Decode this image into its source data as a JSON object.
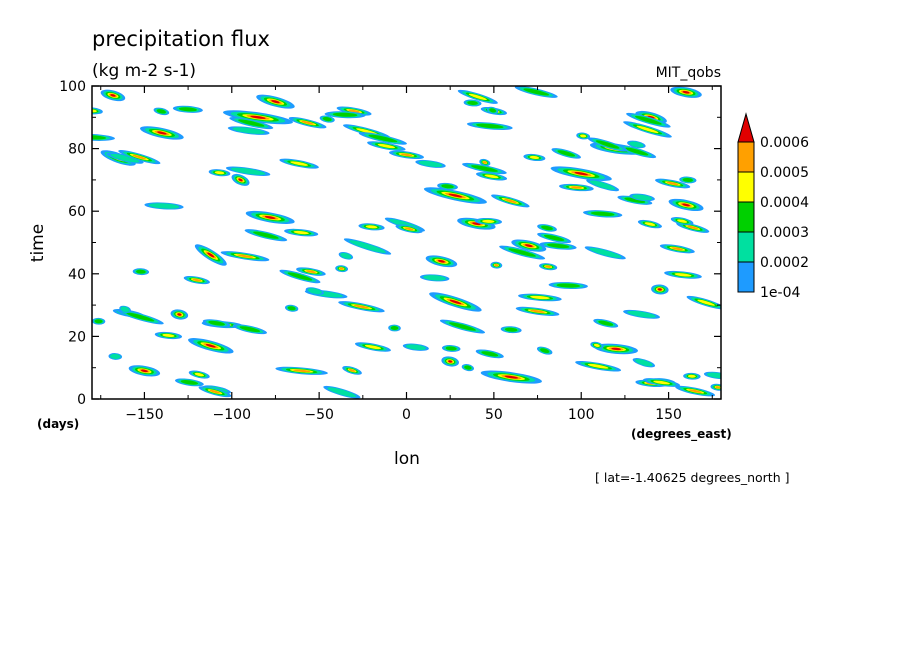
{
  "chart_data": {
    "type": "heatmap",
    "title": "precipitation flux",
    "subtitle": "(kg m-2 s-1)",
    "dataset": "MIT_qobs",
    "xlabel": "lon",
    "ylabel": "time",
    "x_units": "(degrees_east)",
    "y_units": "(days)",
    "xlim": [
      -180,
      180
    ],
    "ylim": [
      0,
      100
    ],
    "x_ticks": [
      -150,
      -100,
      -50,
      0,
      50,
      100,
      150
    ],
    "y_ticks": [
      0,
      20,
      40,
      60,
      80,
      100
    ],
    "footnote": "[ lat=-1.40625 degrees_north ]",
    "grid": false,
    "legend_position": "right",
    "colorbar": {
      "levels": [
        "1e-04",
        "0.0002",
        "0.0003",
        "0.0004",
        "0.0005",
        "0.0006"
      ],
      "colors": [
        "#1e9bff",
        "#00e0a0",
        "#00d000",
        "#ffff00",
        "#ffa000",
        "#e00000"
      ],
      "extend": "max"
    },
    "features": [
      {
        "lon": -112,
        "t": 46,
        "len": 18,
        "slope": -0.35,
        "peak": 7
      },
      {
        "lon": -95,
        "t": 70,
        "len": 10,
        "slope": -0.25,
        "peak": 6
      },
      {
        "lon": -78,
        "t": 58,
        "len": 28,
        "slope": -0.1,
        "peak": 6
      },
      {
        "lon": -75,
        "t": 95,
        "len": 22,
        "slope": -0.15,
        "peak": 6
      },
      {
        "lon": -165,
        "t": 77,
        "len": 20,
        "slope": -0.2,
        "peak": 6
      },
      {
        "lon": -140,
        "t": 85,
        "len": 25,
        "slope": -0.12,
        "peak": 6
      },
      {
        "lon": -168,
        "t": 97,
        "len": 14,
        "slope": -0.15,
        "peak": 6
      },
      {
        "lon": -112,
        "t": 17,
        "len": 26,
        "slope": -0.15,
        "peak": 6
      },
      {
        "lon": -130,
        "t": 27,
        "len": 10,
        "slope": -0.1,
        "peak": 6
      },
      {
        "lon": -150,
        "t": 9,
        "len": 18,
        "slope": -0.1,
        "peak": 5
      },
      {
        "lon": -85,
        "t": 90,
        "len": 40,
        "slope": -0.08,
        "peak": 5
      },
      {
        "lon": -120,
        "t": 38,
        "len": 15,
        "slope": -0.1,
        "peak": 4
      },
      {
        "lon": -60,
        "t": 9,
        "len": 30,
        "slope": -0.05,
        "peak": 4
      },
      {
        "lon": 28,
        "t": 65,
        "len": 36,
        "slope": -0.12,
        "peak": 6
      },
      {
        "lon": 28,
        "t": 31,
        "len": 30,
        "slope": -0.18,
        "peak": 6
      },
      {
        "lon": 20,
        "t": 44,
        "len": 18,
        "slope": -0.12,
        "peak": 5
      },
      {
        "lon": 25,
        "t": 12,
        "len": 10,
        "slope": -0.1,
        "peak": 6
      },
      {
        "lon": 60,
        "t": 7,
        "len": 35,
        "slope": -0.08,
        "peak": 5
      },
      {
        "lon": 40,
        "t": 56,
        "len": 22,
        "slope": -0.1,
        "peak": 5
      },
      {
        "lon": 70,
        "t": 49,
        "len": 20,
        "slope": -0.12,
        "peak": 5
      },
      {
        "lon": 100,
        "t": 72,
        "len": 35,
        "slope": -0.1,
        "peak": 6
      },
      {
        "lon": 140,
        "t": 90,
        "len": 18,
        "slope": -0.15,
        "peak": 6
      },
      {
        "lon": 120,
        "t": 80,
        "len": 30,
        "slope": -0.08,
        "peak": 6
      },
      {
        "lon": 160,
        "t": 62,
        "len": 20,
        "slope": -0.12,
        "peak": 6
      },
      {
        "lon": 160,
        "t": 98,
        "len": 18,
        "slope": -0.1,
        "peak": 5
      },
      {
        "lon": 120,
        "t": 16,
        "len": 25,
        "slope": -0.05,
        "peak": 5
      },
      {
        "lon": 145,
        "t": 35,
        "len": 10,
        "slope": -0.05,
        "peak": 5
      },
      {
        "lon": 155,
        "t": 48,
        "len": 20,
        "slope": -0.1,
        "peak": 4
      },
      {
        "lon": 140,
        "t": 5,
        "len": 18,
        "slope": -0.05,
        "peak": 4
      },
      {
        "lon": -30,
        "t": 92,
        "len": 20,
        "slope": -0.1,
        "peak": 4
      },
      {
        "lon": -20,
        "t": 55,
        "len": 15,
        "slope": -0.05,
        "peak": 3
      },
      {
        "lon": 0,
        "t": 78,
        "len": 20,
        "slope": -0.08,
        "peak": 4
      },
      {
        "lon": 50,
        "t": 92,
        "len": 15,
        "slope": -0.1,
        "peak": 4
      },
      {
        "lon": 75,
        "t": 28,
        "len": 25,
        "slope": -0.08,
        "peak": 4
      }
    ]
  }
}
